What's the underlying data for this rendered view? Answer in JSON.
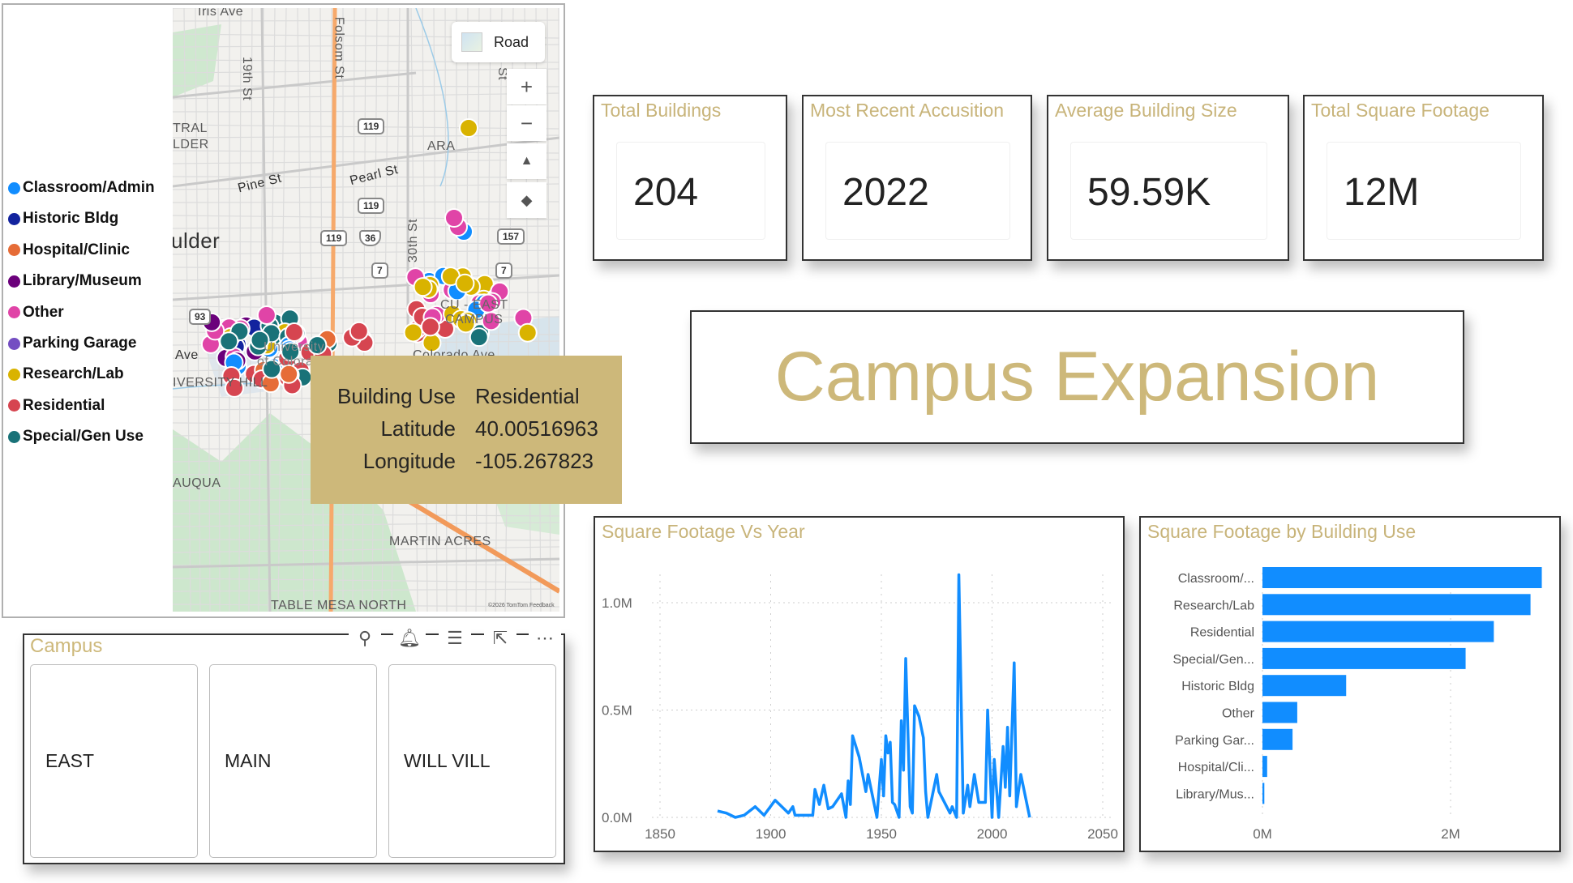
{
  "map": {
    "legend": [
      {
        "label": "Classroom/Admin",
        "color": "#118dff"
      },
      {
        "label": "Historic Bldg",
        "color": "#12239e"
      },
      {
        "label": "Hospital/Clinic",
        "color": "#e66c37"
      },
      {
        "label": "Library/Museum",
        "color": "#6b007b"
      },
      {
        "label": "Other",
        "color": "#e044a7"
      },
      {
        "label": "Parking Garage",
        "color": "#744ec2"
      },
      {
        "label": "Research/Lab",
        "color": "#d9b300"
      },
      {
        "label": "Residential",
        "color": "#d64550"
      },
      {
        "label": "Special/Gen Use",
        "color": "#197278"
      }
    ],
    "style_button": "Road",
    "labels": {
      "iris": "Iris Ave",
      "folsom": "Folsom St",
      "nineteenth": "19th St",
      "central1": "TRAL",
      "central2": "LDER",
      "pine": "Pine St",
      "pearl": "Pearl St",
      "ara": "ARA",
      "boulder": "ulder",
      "thirtieth": "30th St",
      "st": "St",
      "ave": "Ave",
      "hill": "IVERSITY HILL",
      "univ1": "University",
      "univ2": "of Colora",
      "east1": "CU - EAST",
      "east2": "CAMPUS",
      "colorado": "Colorado Ave",
      "auqua": "AUQUA",
      "martin": "MARTIN ACRES",
      "tablemesa": "TABLE MESA NORTH",
      "copyright": "©2026 TomTom  Feedback"
    },
    "shields": [
      "119",
      "119",
      "119",
      "36",
      "7",
      "7",
      "93",
      "157"
    ],
    "tooltip": {
      "rows": [
        {
          "key": "Building Use",
          "value": "Residential"
        },
        {
          "key": "Latitude",
          "value": "40.00516963"
        },
        {
          "key": "Longitude",
          "value": "-105.267823"
        }
      ]
    }
  },
  "cards": [
    {
      "title": "Total Buildings",
      "value": "204"
    },
    {
      "title": "Most Recent Accusition",
      "value": "2022"
    },
    {
      "title": "Average Building Size",
      "value": "59.59K"
    },
    {
      "title": "Total Square Footage",
      "value": "12M"
    }
  ],
  "page_title": "Campus Expansion",
  "slicer": {
    "title": "Campus",
    "options": [
      "EAST",
      "MAIN",
      "WILL VILL"
    ]
  },
  "chart_data": [
    {
      "type": "line",
      "title": "Square Footage Vs Year",
      "xlim": [
        1850,
        2050
      ],
      "ylim": [
        0,
        1.2
      ],
      "x_ticks": [
        "1850",
        "1900",
        "1950",
        "2000",
        "2050"
      ],
      "y_ticks": [
        "0.0M",
        "0.5M",
        "1.0M"
      ],
      "y_tick_values": [
        0,
        0.5,
        1.0
      ],
      "grid": true,
      "color": "#118dff",
      "x": [
        1876,
        1880,
        1884,
        1888,
        1893,
        1897,
        1902,
        1906,
        1908,
        1910,
        1911,
        1919,
        1920,
        1922,
        1924,
        1926,
        1928,
        1932,
        1934,
        1935,
        1936,
        1937,
        1940,
        1943,
        1944,
        1946,
        1948,
        1950,
        1951,
        1952,
        1953,
        1954,
        1955,
        1956,
        1958,
        1959,
        1960,
        1961,
        1963,
        1964,
        1965,
        1967,
        1969,
        1970,
        1971,
        1975,
        1976,
        1979,
        1981,
        1982,
        1984,
        1985,
        1987,
        1989,
        1990,
        1992,
        1994,
        1997,
        1998,
        2000,
        2001,
        2003,
        2005,
        2006,
        2007,
        2008,
        2010,
        2011,
        2013,
        2017
      ],
      "values": [
        0.03,
        0.02,
        0.0,
        0.01,
        0.05,
        0.01,
        0.08,
        0.04,
        0.02,
        0.05,
        0.01,
        0.01,
        0.13,
        0.06,
        0.15,
        0.04,
        0.05,
        0.11,
        0.0,
        0.17,
        0.06,
        0.38,
        0.28,
        0.12,
        0.2,
        0.1,
        0.0,
        0.27,
        0.1,
        0.38,
        0.3,
        0.35,
        0.07,
        0.06,
        0.0,
        0.45,
        0.22,
        0.74,
        0.05,
        0.02,
        0.52,
        0.47,
        0.37,
        0.12,
        0.0,
        0.2,
        0.12,
        0.06,
        0.02,
        0.05,
        0.0,
        1.13,
        0.02,
        0.15,
        0.05,
        0.2,
        0.07,
        0.07,
        0.5,
        0.0,
        0.27,
        0.0,
        0.33,
        0.14,
        0.42,
        0.1,
        0.72,
        0.05,
        0.2,
        0.0
      ]
    },
    {
      "type": "bar",
      "orientation": "horizontal",
      "title": "Square Footage by Building Use",
      "categories": [
        "Classroom/...",
        "Research/Lab",
        "Residential",
        "Special/Gen...",
        "Historic Bldg",
        "Other",
        "Parking Gar...",
        "Hospital/Cli...",
        "Library/Mus..."
      ],
      "values": [
        2.97,
        2.85,
        2.46,
        2.16,
        0.89,
        0.37,
        0.32,
        0.05,
        0.02
      ],
      "x_ticks": [
        "0M",
        "2M"
      ],
      "x_tick_values": [
        0,
        2
      ],
      "xlim": [
        0,
        3.1
      ],
      "grid": true,
      "color": "#118dff"
    }
  ]
}
